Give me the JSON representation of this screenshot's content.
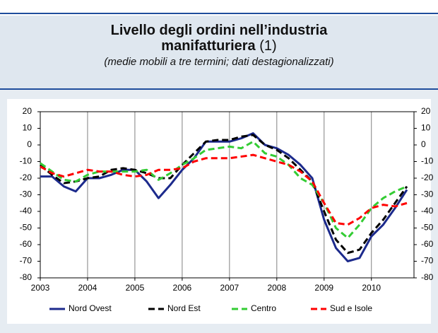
{
  "chart_data": {
    "type": "line",
    "title": "Livello degli ordini nell’industria manifatturiera",
    "title_note": "(1)",
    "subtitle": "(medie mobili a tre termini; dati destagionalizzati)",
    "x": [
      2003.0,
      2003.25,
      2003.5,
      2003.75,
      2004.0,
      2004.25,
      2004.5,
      2004.75,
      2005.0,
      2005.25,
      2005.5,
      2005.75,
      2006.0,
      2006.25,
      2006.5,
      2006.75,
      2007.0,
      2007.25,
      2007.5,
      2007.75,
      2008.0,
      2008.25,
      2008.5,
      2008.75,
      2009.0,
      2009.25,
      2009.5,
      2009.75,
      2010.0,
      2010.25,
      2010.5,
      2010.75
    ],
    "series": [
      {
        "name": "Nord Ovest",
        "color": "#1c2a8c",
        "dashed": false,
        "values": [
          -19,
          -19,
          -25,
          -28,
          -20,
          -20,
          -18,
          -15,
          -15,
          -22,
          -32,
          -24,
          -15,
          -8,
          2,
          2,
          2,
          4,
          7,
          0,
          -2,
          -6,
          -12,
          -20,
          -45,
          -62,
          -70,
          -68,
          -55,
          -48,
          -38,
          -27
        ]
      },
      {
        "name": "Nord Est",
        "color": "#000000",
        "dashed": true,
        "values": [
          -12,
          -18,
          -23,
          -22,
          -20,
          -19,
          -15,
          -14,
          -15,
          -17,
          -20,
          -20,
          -12,
          -5,
          2,
          3,
          3,
          5,
          6,
          0,
          -3,
          -8,
          -15,
          -22,
          -40,
          -57,
          -65,
          -63,
          -53,
          -45,
          -35,
          -25
        ]
      },
      {
        "name": "Centro",
        "color": "#33cc33",
        "dashed": true,
        "values": [
          -11,
          -16,
          -21,
          -22,
          -18,
          -16,
          -16,
          -16,
          -16,
          -15,
          -21,
          -17,
          -12,
          -8,
          -3,
          -2,
          -1,
          -2,
          2,
          -5,
          -7,
          -12,
          -20,
          -24,
          -35,
          -50,
          -56,
          -48,
          -38,
          -32,
          -28,
          -25
        ]
      },
      {
        "name": "Sud e Isole",
        "color": "#ff0000",
        "dashed": true,
        "values": [
          -13,
          -17,
          -19,
          -17,
          -15,
          -16,
          -16,
          -18,
          -19,
          -18,
          -15,
          -15,
          -14,
          -10,
          -8,
          -8,
          -8,
          -7,
          -6,
          -8,
          -10,
          -12,
          -16,
          -22,
          -35,
          -47,
          -48,
          -44,
          -38,
          -36,
          -37,
          -35
        ]
      }
    ],
    "xlim": [
      2003,
      2010.9
    ],
    "xticks": [
      2003,
      2004,
      2005,
      2006,
      2007,
      2008,
      2009,
      2010
    ],
    "ylim": [
      -80,
      20
    ],
    "yticks": [
      -80,
      -70,
      -60,
      -50,
      -40,
      -30,
      -20,
      -10,
      0,
      10,
      20
    ],
    "y2lim": [
      -80,
      20
    ],
    "y2ticks": [
      -80,
      -70,
      -60,
      -50,
      -40,
      -30,
      -20,
      -10,
      0,
      10,
      20
    ],
    "grid": "x",
    "legend": "bottom"
  }
}
